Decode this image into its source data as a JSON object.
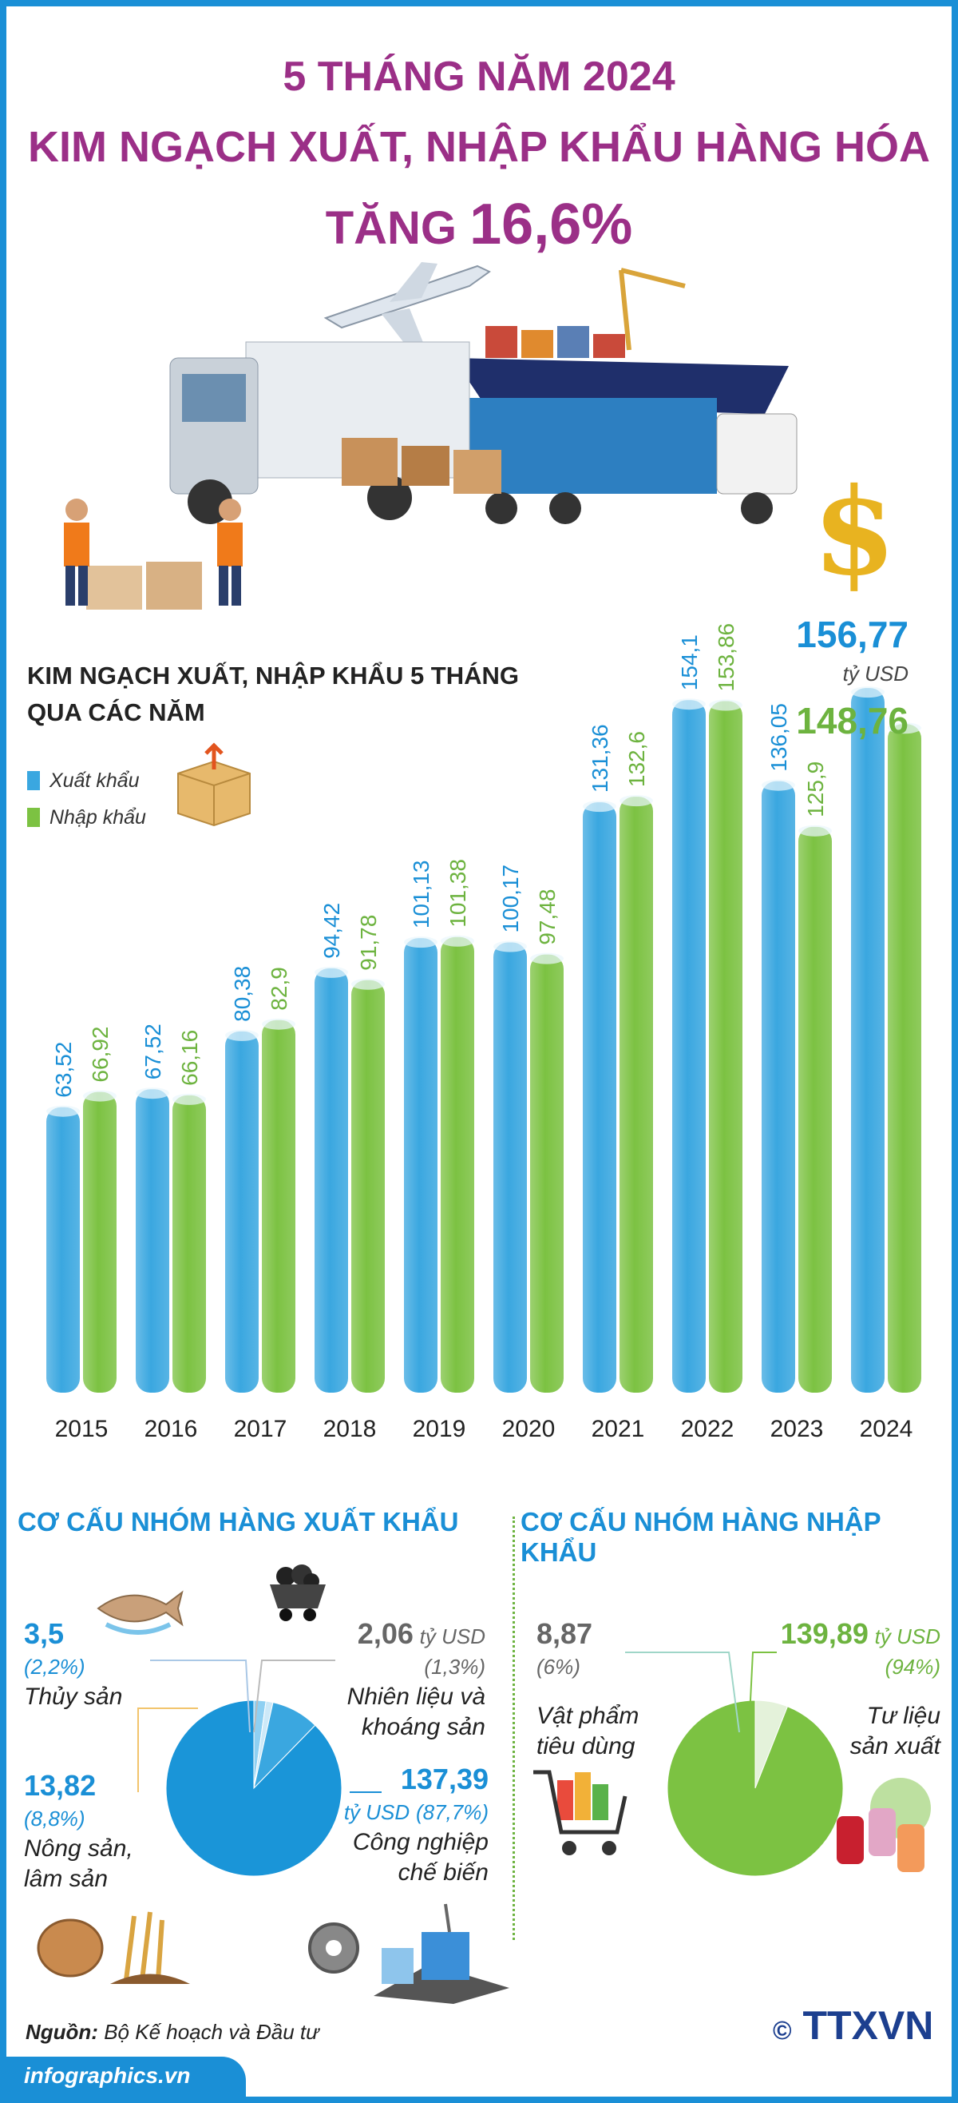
{
  "header": {
    "line1": "5 THÁNG NĂM 2024",
    "line2": "KIM NGẠCH XUẤT, NHẬP KHẨU HÀNG HÓA",
    "line3_prefix": "TĂNG",
    "line3_value": "16,6%"
  },
  "colors": {
    "export": "#3aa7e0",
    "import": "#7cc242",
    "title": "#9b2f87"
  },
  "chart_data": {
    "type": "bar",
    "title": "KIM NGẠCH XUẤT, NHẬP KHẨU 5 THÁNG QUA CÁC NĂM",
    "categories": [
      "2015",
      "2016",
      "2017",
      "2018",
      "2019",
      "2020",
      "2021",
      "2022",
      "2023",
      "2024"
    ],
    "series": [
      {
        "name": "Xuất khẩu",
        "values": [
          63.52,
          67.52,
          80.38,
          94.42,
          101.13,
          100.17,
          131.36,
          154.1,
          136.05,
          156.77
        ],
        "labels": [
          "63,52",
          "67,52",
          "80,38",
          "94,42",
          "101,13",
          "100,17",
          "131,36",
          "154,1",
          "136,05",
          "156,77"
        ]
      },
      {
        "name": "Nhập khẩu",
        "values": [
          66.92,
          66.16,
          82.9,
          91.78,
          101.38,
          97.48,
          132.6,
          153.86,
          125.9,
          148.76
        ],
        "labels": [
          "66,92",
          "66,16",
          "82,9",
          "91,78",
          "101,38",
          "97,48",
          "132,6",
          "153,86",
          "125,9",
          "148,76"
        ]
      }
    ],
    "unit": "tỷ USD",
    "grid": false,
    "legend": "top-left"
  },
  "chart_title_line1": "KIM NGẠCH XUẤT, NHẬP KHẨU 5 THÁNG",
  "chart_title_line2": "QUA CÁC NĂM",
  "legend": {
    "export": "Xuất khẩu",
    "import": "Nhập khẩu"
  },
  "unit_label": "tỷ USD",
  "export_structure": {
    "title": "CƠ CẤU NHÓM HÀNG XUẤT KHẨU",
    "items": [
      {
        "value": "3,5",
        "pct": "(2,2%)",
        "name": "Thủy sản",
        "share": 2.2
      },
      {
        "value": "2,06",
        "unit": "tỷ USD",
        "pct": "(1,3%)",
        "name1": "Nhiên liệu và",
        "name2": "khoáng sản",
        "share": 1.3
      },
      {
        "value": "13,82",
        "pct": "(8,8%)",
        "name1": "Nông sản,",
        "name2": "lâm sản",
        "share": 8.8
      },
      {
        "value": "137,39",
        "unit": "tỷ USD",
        "pct": "(87,7%)",
        "name1": "Công nghiệp",
        "name2": "chế biến",
        "share": 87.7
      }
    ]
  },
  "import_structure": {
    "title": "CƠ CẤU NHÓM HÀNG NHẬP KHẨU",
    "items": [
      {
        "value": "8,87",
        "pct": "(6%)",
        "name1": "Vật phẩm",
        "name2": "tiêu dùng",
        "share": 6
      },
      {
        "value": "139,89",
        "unit": "tỷ USD",
        "pct": "(94%)",
        "name1": "Tư liệu",
        "name2": "sản xuất",
        "share": 94
      }
    ]
  },
  "footer": {
    "source_label": "Nguồn:",
    "source_text": "Bộ Kế hoạch và Đầu tư",
    "site": "infographics.vn",
    "logo": "TTXVN",
    "copyright": "©"
  }
}
